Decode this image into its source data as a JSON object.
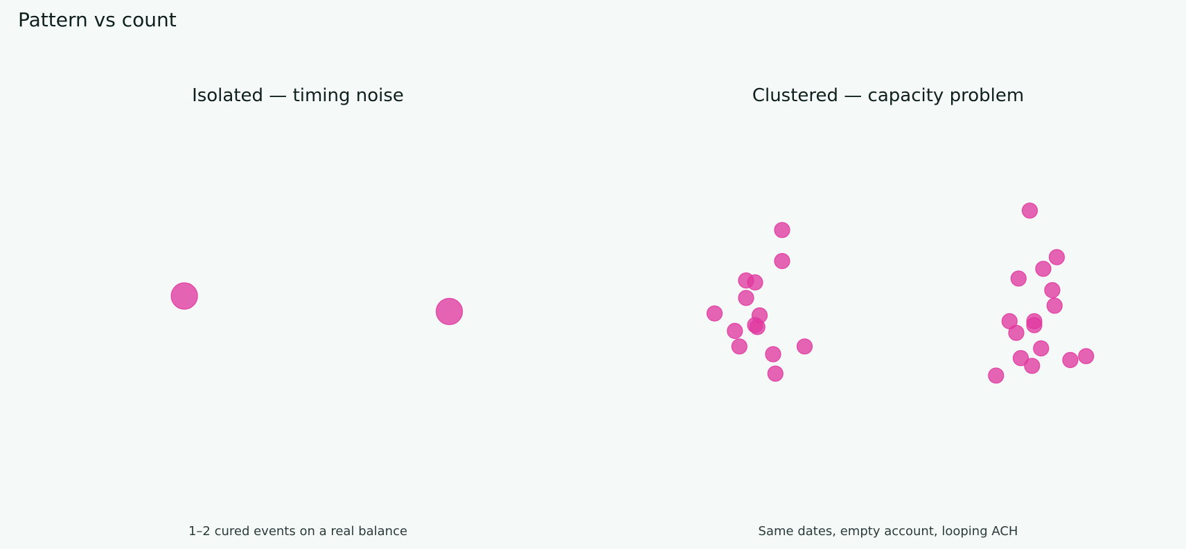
{
  "chart_data": {
    "title": "Pattern vs count",
    "type": "scatter",
    "accent_color": "#e0399f",
    "panels": [
      {
        "title": "Isolated — timing noise",
        "caption": "1–2 cured events on a real balance",
        "marker": "large",
        "xlim": [
          0,
          10
        ],
        "ylim": [
          0,
          10
        ],
        "points": [
          {
            "x": 1.1,
            "y": 5.5
          },
          {
            "x": 8.6,
            "y": 5.1
          }
        ]
      },
      {
        "title": "Clustered — capacity problem",
        "caption": "Same dates, empty account, looping ACH",
        "marker": "small",
        "xlim": [
          0,
          10
        ],
        "ylim": [
          0,
          10
        ],
        "points": [
          {
            "x": 2.6,
            "y": 7.2
          },
          {
            "x": 2.6,
            "y": 6.4
          },
          {
            "x": 1.8,
            "y": 5.9
          },
          {
            "x": 2.0,
            "y": 5.85
          },
          {
            "x": 1.1,
            "y": 5.05
          },
          {
            "x": 1.8,
            "y": 5.45
          },
          {
            "x": 2.1,
            "y": 5.0
          },
          {
            "x": 2.0,
            "y": 4.75
          },
          {
            "x": 1.55,
            "y": 4.6
          },
          {
            "x": 2.05,
            "y": 4.7
          },
          {
            "x": 1.65,
            "y": 4.2
          },
          {
            "x": 2.4,
            "y": 4.0
          },
          {
            "x": 3.1,
            "y": 4.2
          },
          {
            "x": 2.45,
            "y": 3.5
          },
          {
            "x": 8.1,
            "y": 7.7
          },
          {
            "x": 8.7,
            "y": 6.5
          },
          {
            "x": 8.4,
            "y": 6.2
          },
          {
            "x": 7.85,
            "y": 5.95
          },
          {
            "x": 8.6,
            "y": 5.65
          },
          {
            "x": 8.65,
            "y": 5.25
          },
          {
            "x": 7.65,
            "y": 4.85
          },
          {
            "x": 8.2,
            "y": 4.85
          },
          {
            "x": 8.2,
            "y": 4.75
          },
          {
            "x": 7.8,
            "y": 4.55
          },
          {
            "x": 8.35,
            "y": 4.15
          },
          {
            "x": 7.9,
            "y": 3.9
          },
          {
            "x": 8.15,
            "y": 3.7
          },
          {
            "x": 9.0,
            "y": 3.85
          },
          {
            "x": 9.35,
            "y": 3.95
          },
          {
            "x": 7.35,
            "y": 3.45
          }
        ]
      }
    ]
  }
}
